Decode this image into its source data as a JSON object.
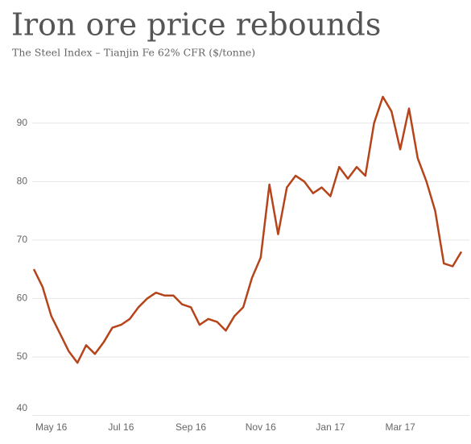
{
  "chart_data": {
    "type": "line",
    "title": "Iron ore price rebounds",
    "subtitle": "The Steel Index – Tianjin Fe 62% CFR ($/tonne)",
    "categories": [
      null,
      null,
      "May 16",
      null,
      null,
      null,
      null,
      null,
      null,
      null,
      "Jul 16",
      null,
      null,
      null,
      null,
      null,
      null,
      null,
      "Sep 16",
      null,
      null,
      null,
      null,
      null,
      null,
      null,
      "Nov 16",
      null,
      null,
      null,
      null,
      null,
      null,
      null,
      "Jan 17",
      null,
      null,
      null,
      null,
      null,
      null,
      null,
      "Mar 17",
      null,
      null,
      null,
      null,
      null,
      null,
      null
    ],
    "series": [
      {
        "name": "Iron ore",
        "color": "#b5441a",
        "values": [
          65,
          62,
          57,
          54,
          51,
          49,
          52,
          50.5,
          52.5,
          55,
          55.5,
          56.5,
          58.5,
          60,
          61,
          60.5,
          60.5,
          59,
          58.5,
          55.5,
          56.5,
          56,
          54.5,
          57,
          58.5,
          63.5,
          67,
          79.5,
          71,
          79,
          81,
          80,
          78,
          79,
          77.5,
          82.5,
          80.5,
          82.5,
          81,
          90,
          94.5,
          92,
          85.5,
          92.5,
          84,
          80,
          75,
          66,
          65.5,
          68
        ]
      }
    ],
    "ylim": [
      40,
      97
    ],
    "yticks": [
      40,
      50,
      60,
      70,
      80,
      90
    ],
    "grid": true
  }
}
